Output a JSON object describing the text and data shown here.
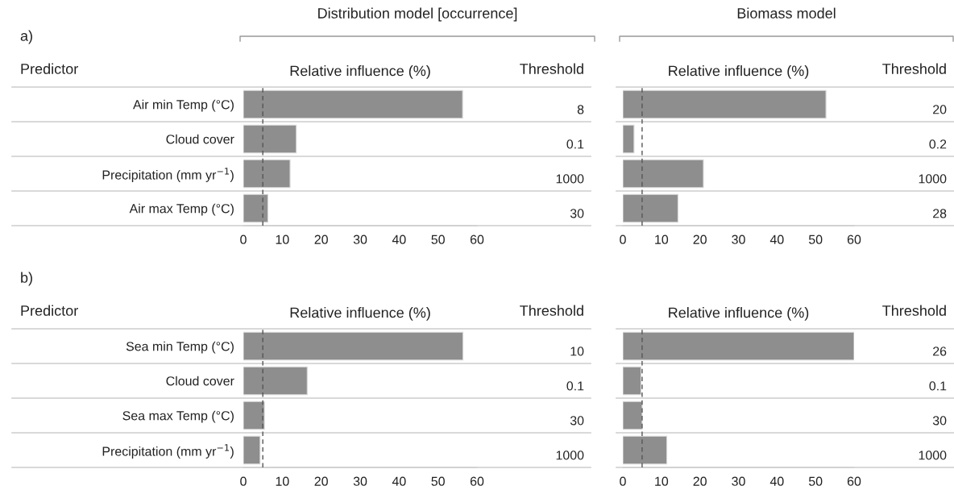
{
  "chart_data": [
    {
      "type": "bar",
      "orientation": "horizontal",
      "title": "Distribution model [occurrence]",
      "subtitle": "a)",
      "ylabel": "Predictor",
      "xlabel": "Relative influence (%)",
      "categories": [
        "Air min Temp (°C)",
        "Cloud cover",
        "Precipitation (mm yr$^{−1}$)",
        "Air max Temp (°C)"
      ],
      "values": [
        56.3,
        13.6,
        12.0,
        6.3
      ],
      "color": "#8e8e8e",
      "xlim": [
        0,
        60
      ],
      "xticks": [
        0,
        10,
        20,
        30,
        40,
        50,
        60
      ],
      "ref_lines": [
        {
          "axis": "x",
          "value": 5,
          "color": "#555555",
          "line_style": "dashed"
        }
      ],
      "annotations": [
        "Threshold",
        "8",
        "0.1",
        "1000",
        "30"
      ]
    },
    {
      "type": "bar",
      "orientation": "horizontal",
      "title": "Biomass model",
      "xlabel": "Relative influence (%)",
      "categories": [
        null,
        null,
        null,
        null
      ],
      "values": [
        52.7,
        2.9,
        20.9,
        14.3
      ],
      "color": "#8e8e8e",
      "xlim": [
        0,
        60
      ],
      "xticks": [
        0,
        10,
        20,
        30,
        40,
        50,
        60
      ],
      "ref_lines": [
        {
          "axis": "x",
          "value": 5,
          "color": "#555555",
          "line_style": "dashed"
        }
      ],
      "annotations": [
        "Threshold",
        "20",
        "0.2",
        "1000",
        "28"
      ]
    },
    {
      "type": "bar",
      "orientation": "horizontal",
      "subtitle": "b)",
      "ylabel": "Predictor",
      "xlabel": "Relative influence (%)",
      "categories": [
        "Sea min Temp (°C)",
        "Cloud cover",
        "Sea max Temp (°C)",
        "Precipitation (mm yr$^{−1}$)"
      ],
      "values": [
        56.4,
        16.4,
        5.4,
        4.3
      ],
      "color": "#8e8e8e",
      "xlim": [
        0,
        60
      ],
      "xticks": [
        0,
        10,
        20,
        30,
        40,
        50,
        60
      ],
      "ref_lines": [
        {
          "axis": "x",
          "value": 5,
          "color": "#555555",
          "line_style": "dashed"
        }
      ],
      "annotations": [
        "Threshold",
        "10",
        "0.1",
        "30",
        "1000"
      ]
    },
    {
      "type": "bar",
      "orientation": "horizontal",
      "xlabel": "Relative influence (%)",
      "categories": [
        null,
        null,
        null,
        null
      ],
      "values": [
        60,
        4.7,
        5.0,
        11.4
      ],
      "color": "#8e8e8e",
      "xlim": [
        0,
        60
      ],
      "xticks": [
        0,
        10,
        20,
        30,
        40,
        50,
        60
      ],
      "ref_lines": [
        {
          "axis": "x",
          "value": 5,
          "color": "#555555",
          "line_style": "dashed"
        }
      ],
      "annotations": [
        "Threshold",
        "26",
        "0.1",
        "30",
        "1000"
      ]
    }
  ]
}
